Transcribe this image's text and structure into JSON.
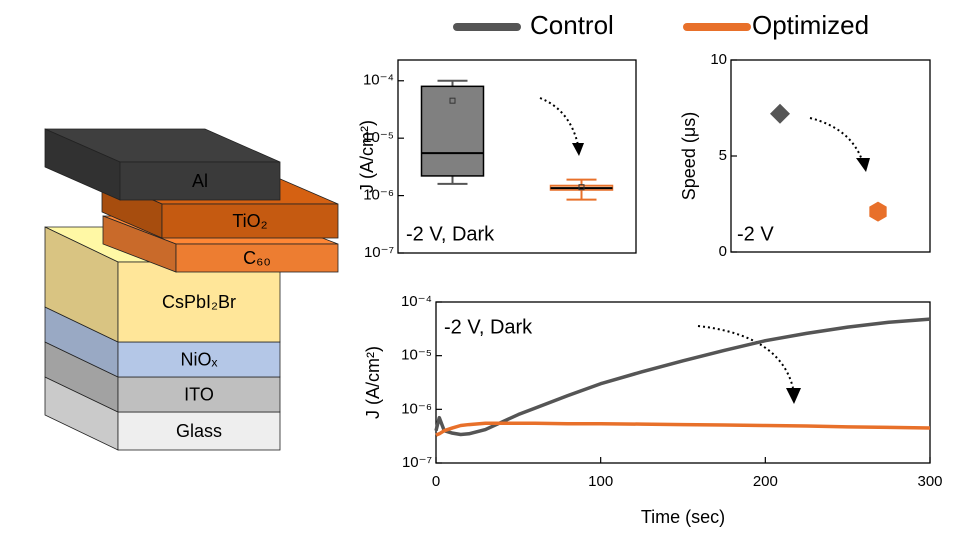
{
  "diagram": {
    "layers": [
      "Al",
      "TiO₂",
      "C₆₀",
      "CsPbI₂Br",
      "NiOₓ",
      "ITO",
      "Glass"
    ]
  },
  "chart_data": [
    {
      "type": "box",
      "ylabel": "J (A/cm²)",
      "annotation": "-2 V, Dark",
      "log_scale": true,
      "ylim": [
        1e-07,
        0.00023
      ],
      "yticks": [
        {
          "value": 1e-07,
          "label": "10⁻⁷"
        },
        {
          "value": 1e-06,
          "label": "10⁻⁶"
        },
        {
          "value": 1e-05,
          "label": "10⁻⁵"
        },
        {
          "value": 0.0001,
          "label": "10⁻⁴"
        }
      ],
      "series": [
        {
          "name": "Control",
          "color": "#555555",
          "min": 1.6e-06,
          "q1": 2.2e-06,
          "median": 5.5e-06,
          "q3": 8e-05,
          "max": 0.0001,
          "mean": 4.5e-05
        },
        {
          "name": "Optimized",
          "color": "#e8702a",
          "min": 8.5e-07,
          "q1": 1.25e-06,
          "median": 1.35e-06,
          "q3": 1.5e-06,
          "max": 1.9e-06,
          "mean": 1.4e-06
        }
      ]
    },
    {
      "type": "scatter",
      "ylabel": "Speed (μs)",
      "annotation": "-2 V",
      "ylim": [
        0,
        10
      ],
      "yticks": [
        0,
        5,
        10
      ],
      "series": [
        {
          "name": "Control",
          "color": "#555555",
          "marker": "diamond",
          "values": [
            7.2
          ]
        },
        {
          "name": "Optimized",
          "color": "#e8702a",
          "marker": "hexagon",
          "values": [
            2.1
          ]
        }
      ]
    },
    {
      "type": "line",
      "xlabel": "Time (sec)",
      "ylabel": "J (A/cm²)",
      "annotation": "-2 V, Dark",
      "log_scale": true,
      "xlim": [
        0,
        300
      ],
      "xticks": [
        0,
        100,
        200,
        300
      ],
      "ylim": [
        1e-07,
        0.0001
      ],
      "yticks": [
        {
          "value": 1e-07,
          "label": "10⁻⁷"
        },
        {
          "value": 1e-06,
          "label": "10⁻⁶"
        },
        {
          "value": 1e-05,
          "label": "10⁻⁵"
        },
        {
          "value": 0.0001,
          "label": "10⁻⁴"
        }
      ],
      "x": [
        0,
        2,
        5,
        10,
        15,
        20,
        30,
        40,
        50,
        60,
        80,
        100,
        125,
        150,
        175,
        200,
        225,
        250,
        275,
        300
      ],
      "series": [
        {
          "name": "Control",
          "color": "#555555",
          "values": [
            4e-07,
            7e-07,
            4e-07,
            3.6e-07,
            3.4e-07,
            3.5e-07,
            4.2e-07,
            5.8e-07,
            8e-07,
            1.05e-06,
            1.8e-06,
            3e-06,
            5e-06,
            8e-06,
            1.25e-05,
            1.9e-05,
            2.6e-05,
            3.4e-05,
            4.2e-05,
            4.8e-05
          ]
        },
        {
          "name": "Optimized",
          "color": "#e8702a",
          "values": [
            3.3e-07,
            3.5e-07,
            4e-07,
            4.5e-07,
            5e-07,
            5.2e-07,
            5.5e-07,
            5.5e-07,
            5.5e-07,
            5.5e-07,
            5.4e-07,
            5.4e-07,
            5.3e-07,
            5.2e-07,
            5.1e-07,
            5e-07,
            4.9e-07,
            4.7e-07,
            4.6e-07,
            4.5e-07
          ]
        }
      ]
    }
  ]
}
